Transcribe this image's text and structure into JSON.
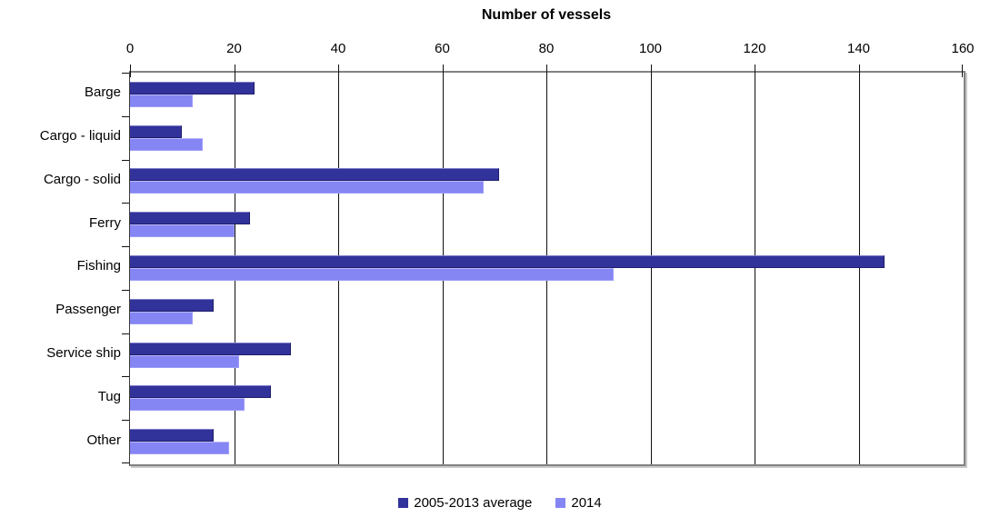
{
  "chart_data": {
    "type": "bar",
    "orientation": "horizontal",
    "title": "Number of vessels",
    "categories": [
      "Barge",
      "Cargo - liquid",
      "Cargo - solid",
      "Ferry",
      "Fishing",
      "Passenger",
      "Service ship",
      "Tug",
      "Other"
    ],
    "series": [
      {
        "name": "2005-2013 average",
        "color": "#32329b",
        "values": [
          24,
          10,
          71,
          23,
          145,
          16,
          31,
          27,
          16
        ]
      },
      {
        "name": "2014",
        "color": "#8585f4",
        "values": [
          12,
          14,
          68,
          20,
          93,
          12,
          21,
          22,
          19
        ]
      }
    ],
    "x_ticks": [
      0,
      20,
      40,
      60,
      80,
      100,
      120,
      140,
      160
    ],
    "xlim": [
      0,
      160
    ],
    "xlabel": "",
    "ylabel": "",
    "grid": true,
    "legend_position": "bottom"
  }
}
